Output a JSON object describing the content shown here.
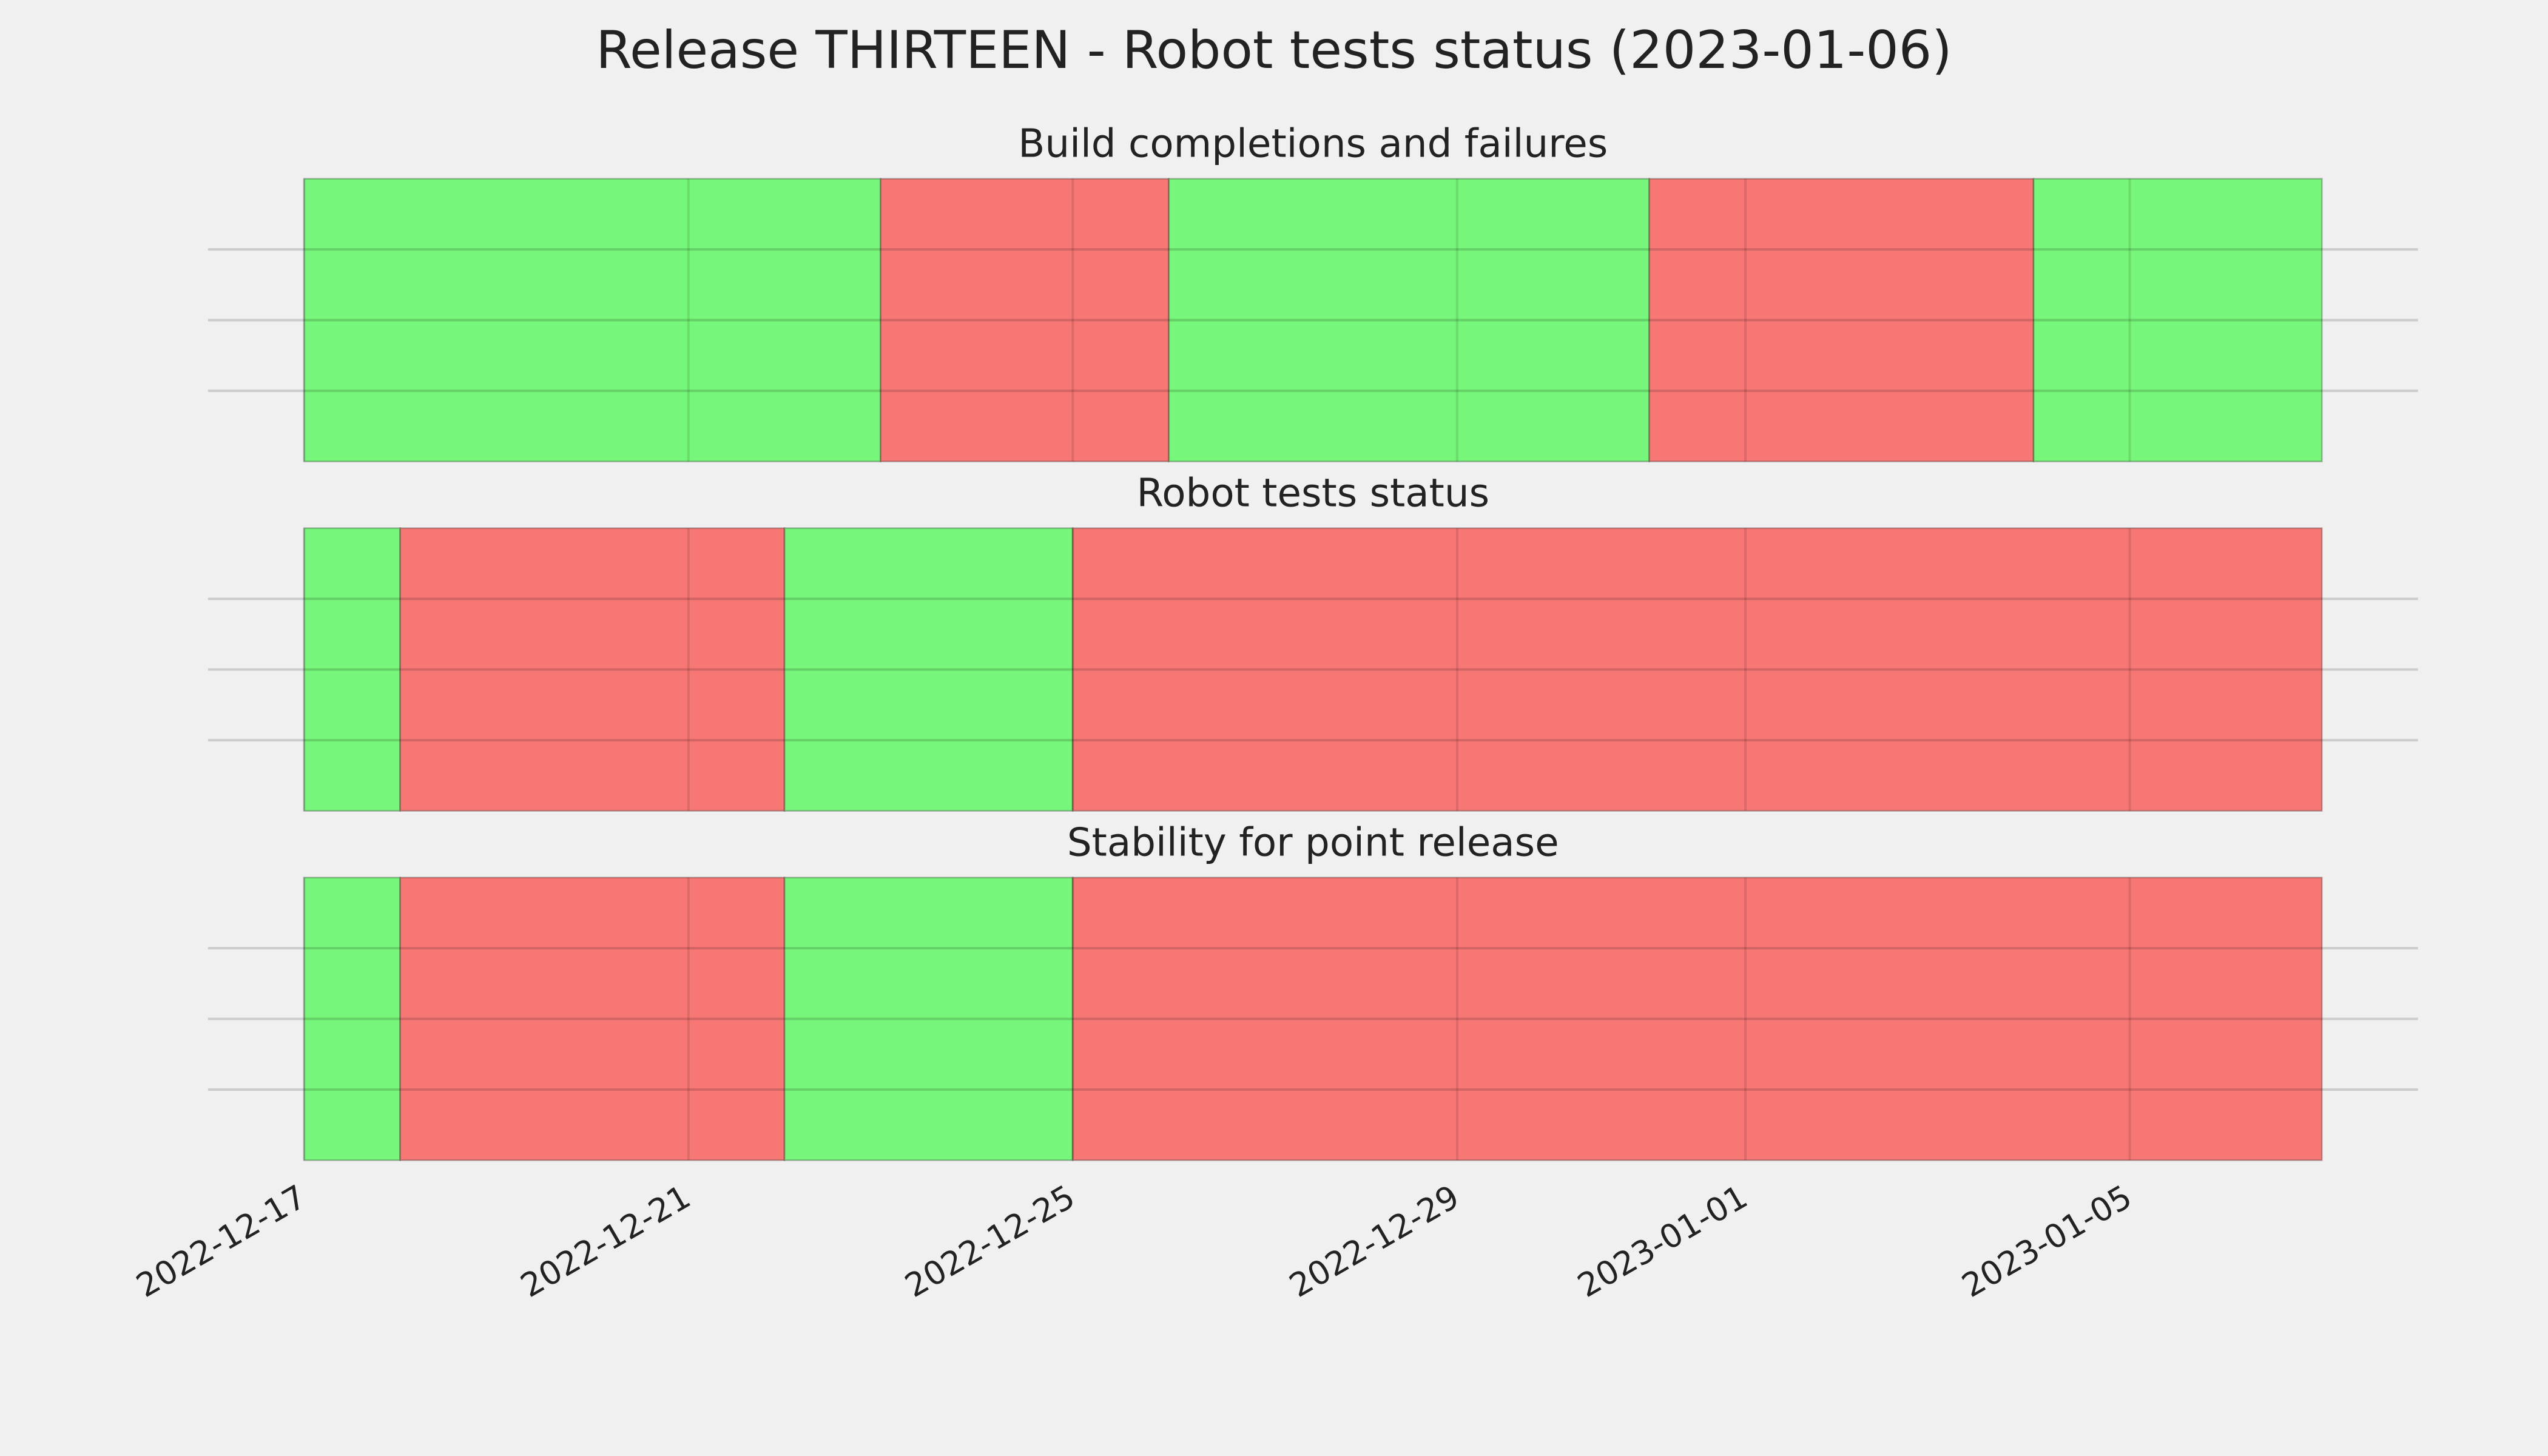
{
  "title": "Release THIRTEEN - Robot tests status (2023-01-06)",
  "chart_data": [
    {
      "type": "status",
      "title": "Build completions and failures",
      "segments": [
        {
          "start": "2022-12-17",
          "end": "2022-12-23",
          "color": "#76f67a"
        },
        {
          "start": "2022-12-23",
          "end": "2022-12-26",
          "color": "#f77775"
        },
        {
          "start": "2022-12-26",
          "end": "2022-12-31",
          "color": "#76f67a"
        },
        {
          "start": "2022-12-31",
          "end": "2023-01-04",
          "color": "#f77775"
        },
        {
          "start": "2023-01-04",
          "end": "2023-01-07",
          "color": "#76f67a"
        }
      ],
      "xlim": [
        "2022-12-16",
        "2023-01-08"
      ],
      "xticks": [
        "2022-12-17",
        "2022-12-21",
        "2022-12-25",
        "2022-12-29",
        "2023-01-01",
        "2023-01-05"
      ],
      "ylim": [
        0,
        1
      ],
      "yticks": [
        0.25,
        0.5,
        0.75
      ],
      "grid": true
    },
    {
      "type": "status",
      "title": "Robot tests status",
      "segments": [
        {
          "start": "2022-12-17",
          "end": "2022-12-18",
          "color": "#76f67a"
        },
        {
          "start": "2022-12-18",
          "end": "2022-12-22",
          "color": "#f77775"
        },
        {
          "start": "2022-12-22",
          "end": "2022-12-25",
          "color": "#76f67a"
        },
        {
          "start": "2022-12-25",
          "end": "2023-01-07",
          "color": "#f77775"
        }
      ],
      "xlim": [
        "2022-12-16",
        "2023-01-08"
      ],
      "xticks": [
        "2022-12-17",
        "2022-12-21",
        "2022-12-25",
        "2022-12-29",
        "2023-01-01",
        "2023-01-05"
      ],
      "ylim": [
        0,
        1
      ],
      "yticks": [
        0.25,
        0.5,
        0.75
      ],
      "grid": true
    },
    {
      "type": "status",
      "title": "Stability for point release",
      "segments": [
        {
          "start": "2022-12-17",
          "end": "2022-12-18",
          "color": "#76f67a"
        },
        {
          "start": "2022-12-18",
          "end": "2022-12-22",
          "color": "#f77775"
        },
        {
          "start": "2022-12-22",
          "end": "2022-12-25",
          "color": "#76f67a"
        },
        {
          "start": "2022-12-25",
          "end": "2023-01-07",
          "color": "#f77775"
        }
      ],
      "xlim": [
        "2022-12-16",
        "2023-01-08"
      ],
      "xticks": [
        "2022-12-17",
        "2022-12-21",
        "2022-12-25",
        "2022-12-29",
        "2023-01-01",
        "2023-01-05"
      ],
      "ylim": [
        0,
        1
      ],
      "yticks": [
        0.25,
        0.5,
        0.75
      ],
      "grid": true
    }
  ]
}
